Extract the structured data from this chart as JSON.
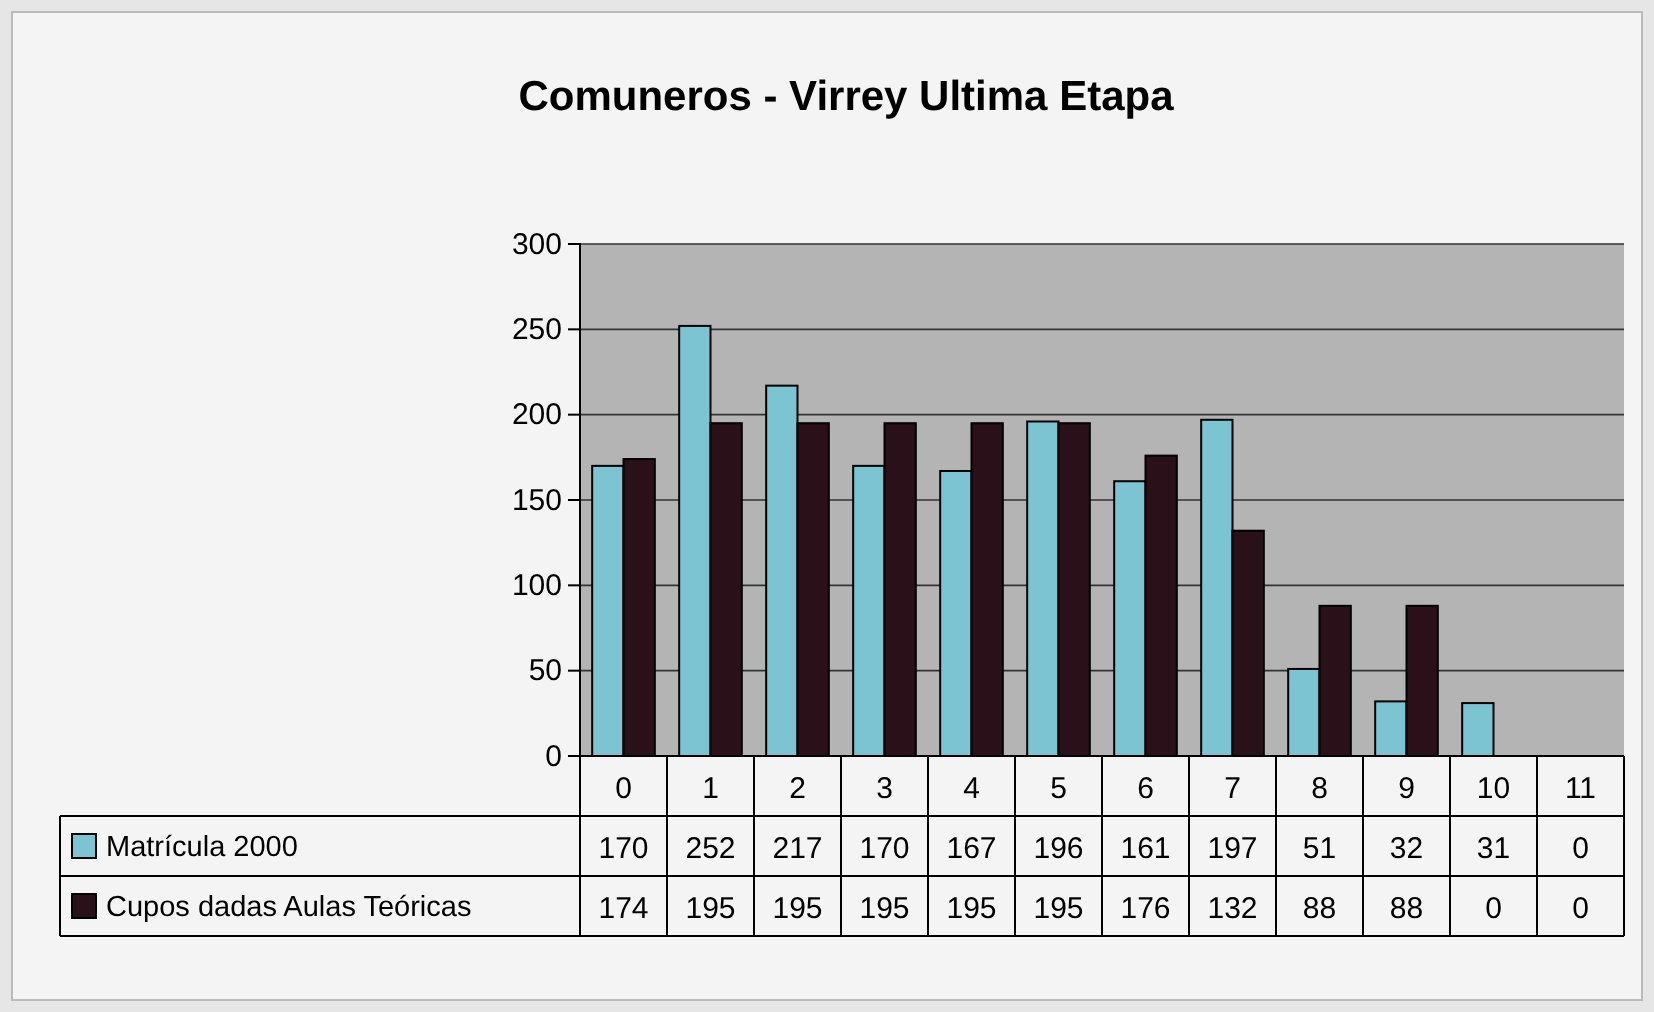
{
  "chart_data": {
    "type": "bar",
    "title": "Comuneros -  Virrey Ultima Etapa",
    "categories": [
      "0",
      "1",
      "2",
      "3",
      "4",
      "5",
      "6",
      "7",
      "8",
      "9",
      "10",
      "11"
    ],
    "series": [
      {
        "name": "Matrícula 2000",
        "color": "#7cc4d2",
        "values": [
          170,
          252,
          217,
          170,
          167,
          196,
          161,
          197,
          51,
          32,
          31,
          0
        ]
      },
      {
        "name": "Cupos dadas Aulas Teóricas",
        "color": "#2a1018",
        "values": [
          174,
          195,
          195,
          195,
          195,
          195,
          176,
          132,
          88,
          88,
          0,
          0
        ]
      }
    ],
    "ylim": [
      0,
      300
    ],
    "yticks": [
      0,
      50,
      100,
      150,
      200,
      250,
      300
    ],
    "grid": "y",
    "legend": "bottom",
    "data_labels": true
  }
}
